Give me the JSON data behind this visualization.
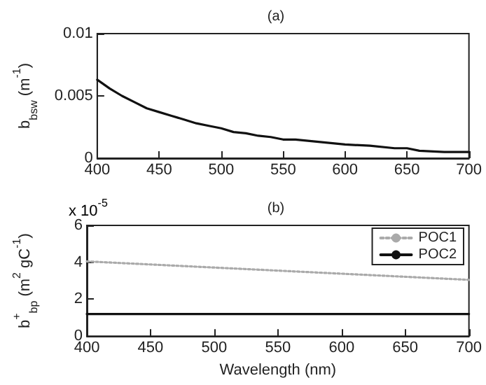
{
  "chart_data": [
    {
      "type": "line",
      "title": "(a)",
      "ylabel": "b$_{bsw}$ (m$^{-1}$)",
      "x": [
        400,
        410,
        420,
        430,
        440,
        450,
        460,
        470,
        480,
        490,
        500,
        510,
        520,
        530,
        540,
        550,
        560,
        580,
        600,
        620,
        640,
        650,
        660,
        680,
        700
      ],
      "series": [
        {
          "color": "#111111",
          "values": [
            0.0063,
            0.0056,
            0.005,
            0.0045,
            0.004,
            0.0037,
            0.0034,
            0.0031,
            0.0028,
            0.0026,
            0.0024,
            0.0021,
            0.002,
            0.0018,
            0.0017,
            0.0015,
            0.0015,
            0.0013,
            0.0011,
            0.001,
            0.0008,
            0.0008,
            0.0006,
            0.0005,
            0.0005
          ]
        }
      ],
      "xlim": [
        400,
        700
      ],
      "xticks": [
        400,
        450,
        500,
        550,
        600,
        650,
        700
      ],
      "ylim": [
        0,
        0.01
      ],
      "yticks": [
        0,
        0.005,
        0.01
      ],
      "grid": false,
      "legend": false,
      "marker": "none",
      "line_style": "solid"
    },
    {
      "type": "line",
      "title": "(b)",
      "xlabel": "Wavelength (nm)",
      "ylabel": "b$^{+}$$_{bp}$ (m$^{2}$ gC$^{-1}$)",
      "annotations": [
        "x 10$^{-5}$"
      ],
      "x": [
        400,
        700
      ],
      "series": [
        {
          "name": "POC1",
          "color": "#aaaaaa",
          "line_style": "dotted",
          "values": [
            4.05,
            3.05
          ]
        },
        {
          "name": "POC2",
          "color": "#111111",
          "line_style": "solid",
          "values": [
            1.2,
            1.2
          ]
        }
      ],
      "xlim": [
        400,
        700
      ],
      "xticks": [
        400,
        450,
        500,
        550,
        600,
        650,
        700
      ],
      "ylim": [
        0,
        6
      ],
      "yticks": [
        0,
        2,
        4,
        6
      ],
      "grid": false,
      "legend": "top right",
      "marker": "none"
    }
  ]
}
